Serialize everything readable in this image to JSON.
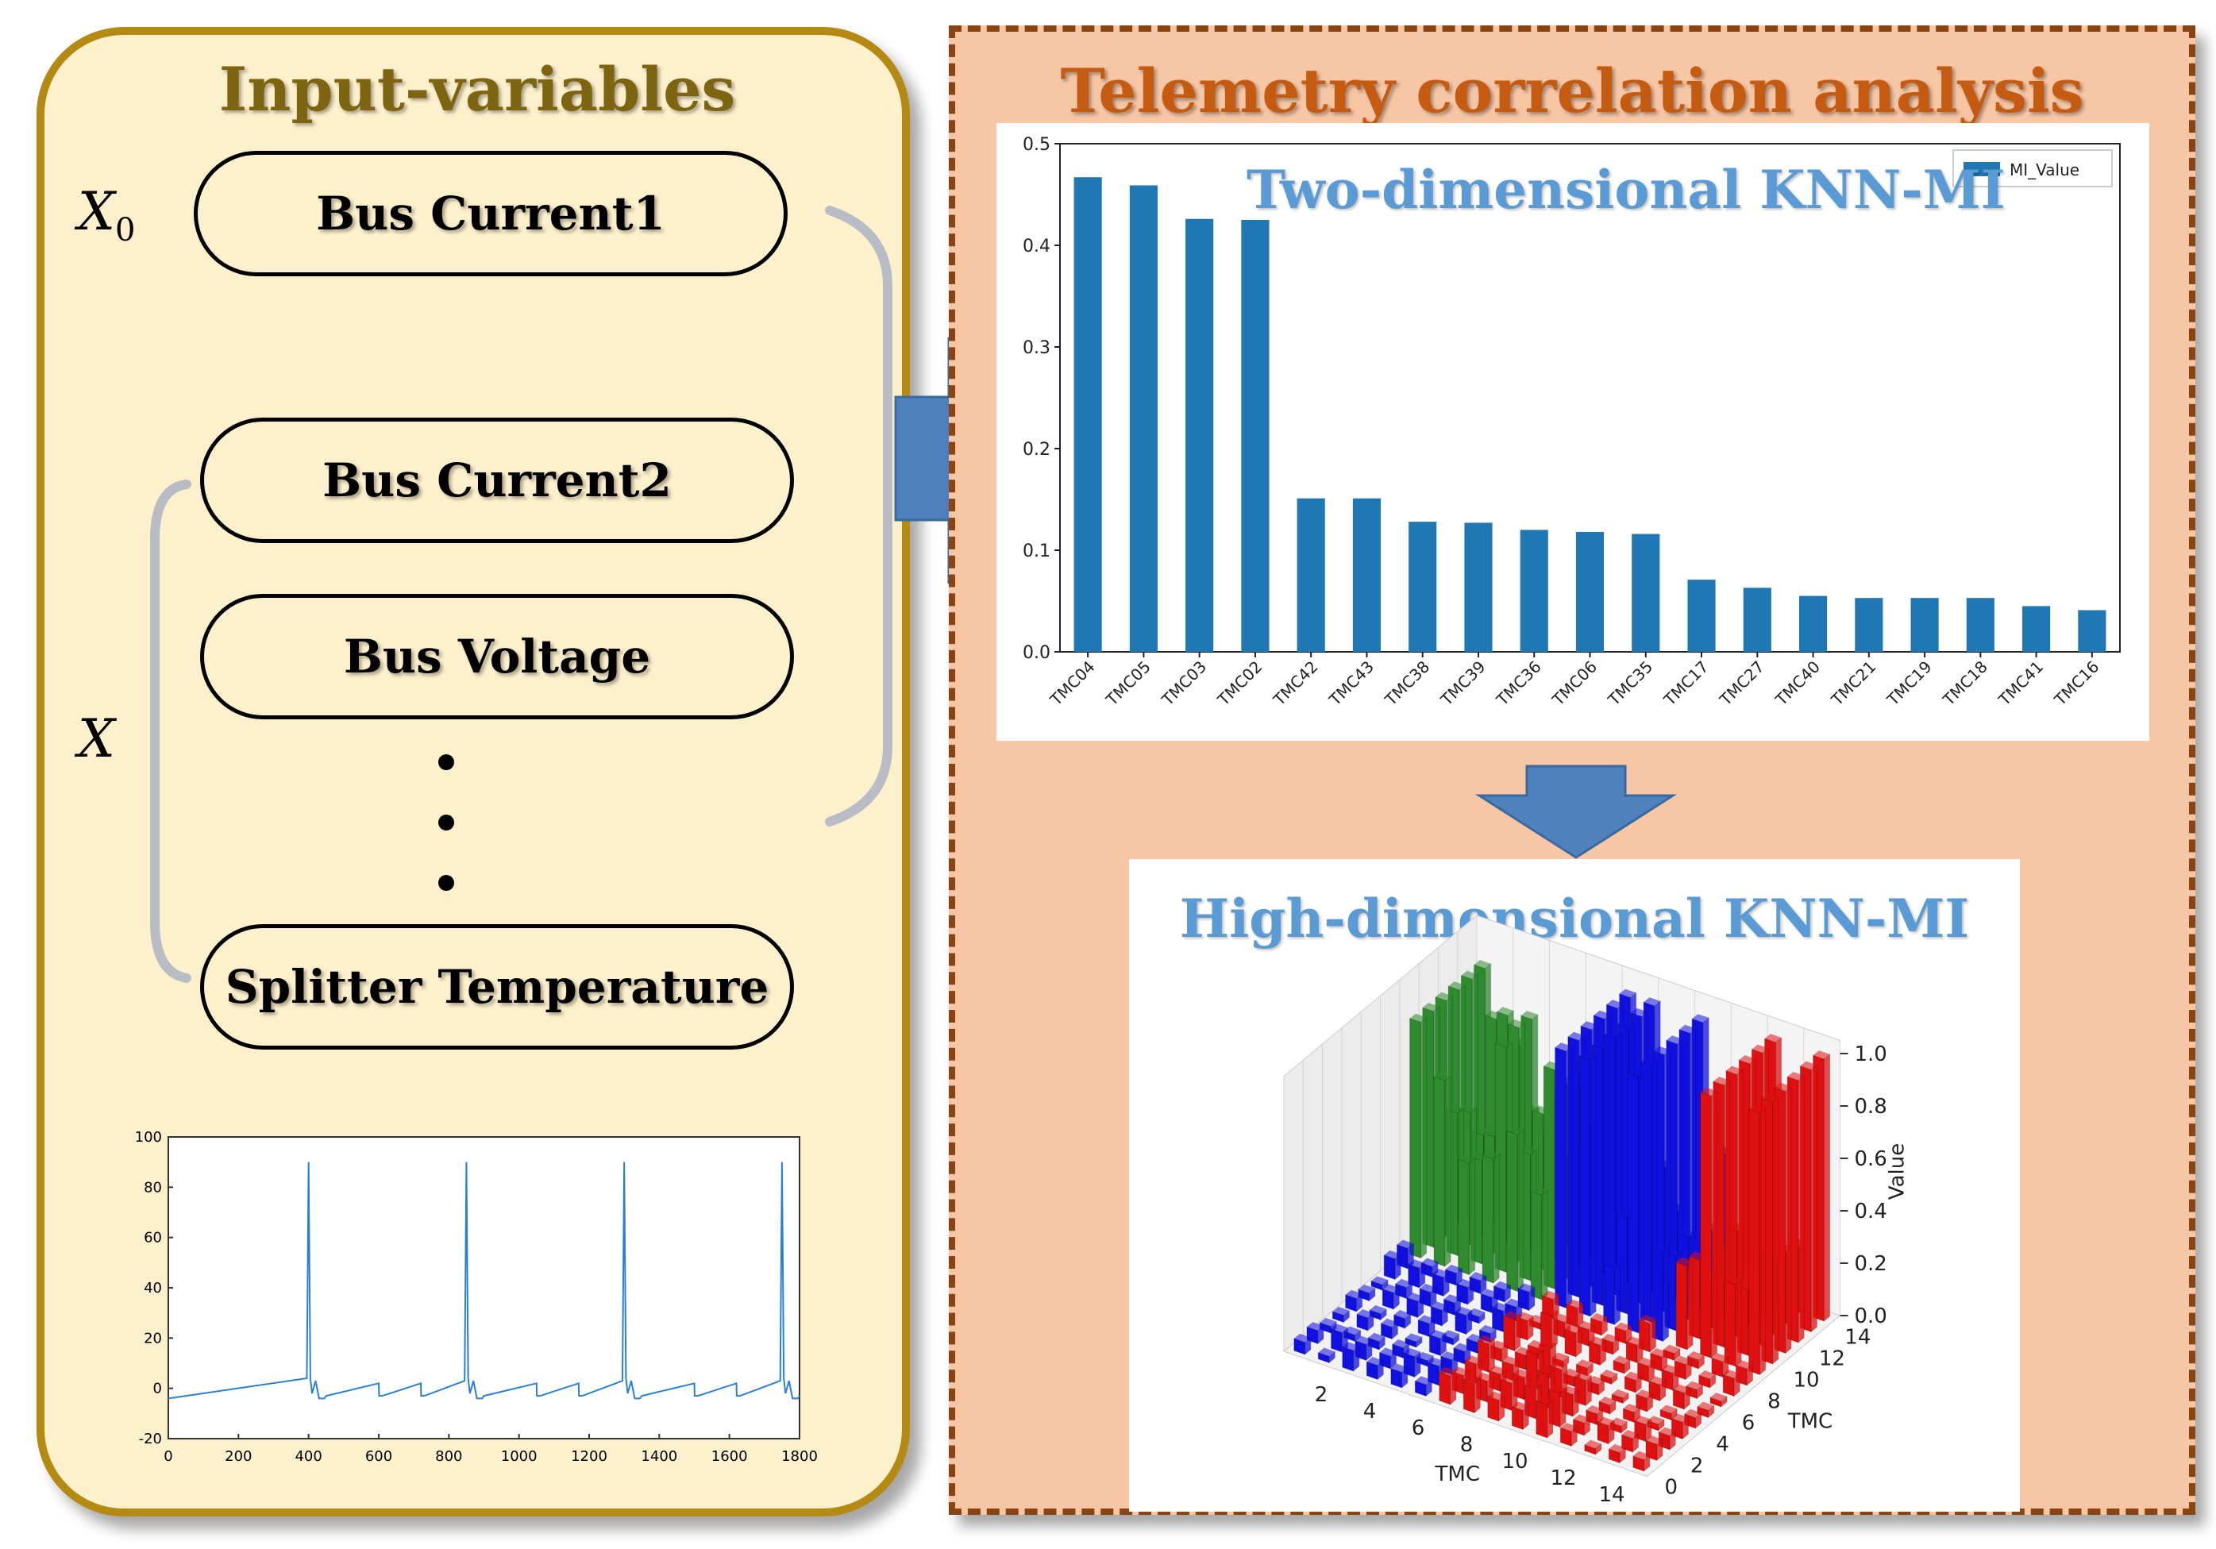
{
  "left_panel": {
    "title": "Input-variables",
    "x0_label": "X",
    "x0_subscript": "0",
    "x_label": "X",
    "items": [
      "Bus Current1",
      "Bus Current2",
      "Bus Voltage",
      "Splitter Temperature"
    ]
  },
  "right_panel": {
    "title": "Telemetry correlation analysis",
    "bar_chart_title": "Two-dimensional KNN-MI",
    "surface_chart_title": "High-dimensional KNN-MI"
  },
  "colors": {
    "left_fill": "#fdf0cc",
    "left_border": "#b58a12",
    "right_fill": "#f7c6a5",
    "right_border": "#8a4411",
    "arrow": "#4f81bd",
    "bar": "#1f77b4",
    "green": "#2e8b2e",
    "blue": "#1010e0",
    "red": "#e01010"
  },
  "chart_data": [
    {
      "type": "line",
      "title": "",
      "x_ticks": [
        "0",
        "200",
        "400",
        "600",
        "800",
        "1000",
        "1200",
        "1400",
        "1600",
        "1800"
      ],
      "y_ticks": [
        "-20",
        "0",
        "20",
        "40",
        "60",
        "80",
        "100"
      ],
      "xlim": [
        0,
        1800
      ],
      "ylim": [
        -20,
        100
      ],
      "x": [
        0,
        395,
        400,
        405,
        410,
        420,
        430,
        445,
        450,
        600,
        601,
        610,
        720,
        721,
        730,
        845,
        850,
        855,
        860,
        870,
        880,
        895,
        900,
        1050,
        1051,
        1060,
        1170,
        1171,
        1180,
        1295,
        1300,
        1305,
        1310,
        1320,
        1330,
        1345,
        1350,
        1500,
        1501,
        1510,
        1620,
        1621,
        1630,
        1745,
        1750,
        1755,
        1760,
        1770,
        1780,
        1795,
        1800
      ],
      "y": [
        -4,
        4,
        90,
        4,
        -2,
        3,
        -4,
        -4,
        -3,
        2,
        -3,
        -3,
        2,
        -3,
        -3,
        3,
        90,
        4,
        -2,
        3,
        -4,
        -4,
        -3,
        2,
        -3,
        -3,
        2,
        -3,
        -3,
        3,
        90,
        4,
        -2,
        3,
        -4,
        -4,
        -3,
        2,
        -3,
        -3,
        2,
        -3,
        -3,
        3,
        90,
        4,
        -2,
        3,
        -4,
        -4,
        -3
      ]
    },
    {
      "type": "bar",
      "title": "Two-dimensional KNN-MI",
      "legend": "MI_Value",
      "legend_position": "top-right",
      "categories": [
        "TMC04",
        "TMC05",
        "TMC03",
        "TMC02",
        "TMC42",
        "TMC43",
        "TMC38",
        "TMC39",
        "TMC36",
        "TMC06",
        "TMC35",
        "TMC17",
        "TMC27",
        "TMC40",
        "TMC21",
        "TMC19",
        "TMC18",
        "TMC41",
        "TMC16"
      ],
      "values": [
        0.467,
        0.459,
        0.426,
        0.425,
        0.151,
        0.151,
        0.128,
        0.127,
        0.12,
        0.118,
        0.116,
        0.071,
        0.063,
        0.055,
        0.053,
        0.053,
        0.053,
        0.045,
        0.041
      ],
      "y_ticks": [
        "0.0",
        "0.1",
        "0.2",
        "0.3",
        "0.4",
        "0.5"
      ],
      "ylim": [
        0,
        0.5
      ]
    },
    {
      "type": "bar3d",
      "title": "High-dimensional KNN-MI",
      "xlabel": "TMC",
      "ylabel": "TMC",
      "zlabel": "Value",
      "x_ticks": [
        "2",
        "4",
        "6",
        "8",
        "10",
        "12",
        "14"
      ],
      "y_ticks": [
        "0",
        "2",
        "4",
        "6",
        "8",
        "10",
        "12",
        "14"
      ],
      "z_ticks": [
        "0.0",
        "0.2",
        "0.4",
        "0.6",
        "0.8",
        "1.0"
      ],
      "zlim": [
        0,
        1
      ]
    }
  ]
}
